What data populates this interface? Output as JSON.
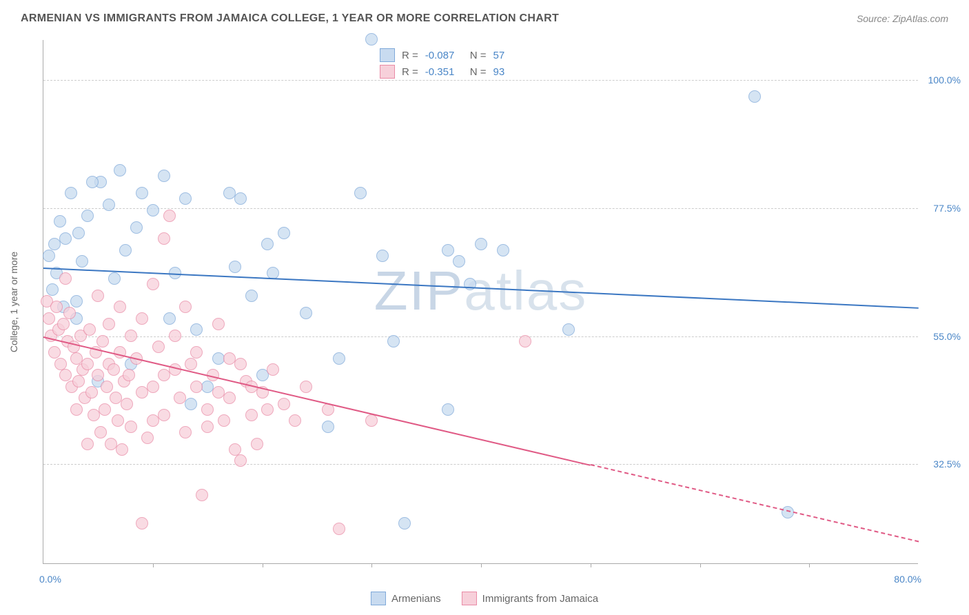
{
  "title": "ARMENIAN VS IMMIGRANTS FROM JAMAICA COLLEGE, 1 YEAR OR MORE CORRELATION CHART",
  "source": "Source: ZipAtlas.com",
  "ylabel": "College, 1 year or more",
  "watermark_a": "ZIP",
  "watermark_b": "atlas",
  "chart": {
    "type": "scatter",
    "xlim": [
      0,
      80
    ],
    "ylim": [
      15,
      107
    ],
    "yticks": [
      {
        "v": 32.5,
        "label": "32.5%"
      },
      {
        "v": 55.0,
        "label": "55.0%"
      },
      {
        "v": 77.5,
        "label": "77.5%"
      },
      {
        "v": 100.0,
        "label": "100.0%"
      }
    ],
    "xtick_marks": [
      10,
      20,
      30,
      40,
      50,
      60,
      70
    ],
    "xaxis_min_label": "0.0%",
    "xaxis_max_label": "80.0%",
    "grid_color": "#cccccc",
    "background_color": "#ffffff",
    "point_radius": 9,
    "series": [
      {
        "name": "Armenians",
        "fill": "#c8dbf0",
        "stroke": "#7fa9d9",
        "line_color": "#3b77c2",
        "R": "-0.087",
        "N": "57",
        "trend": {
          "x1": 0,
          "y1": 67,
          "x2": 80,
          "y2": 60,
          "dash_from_x": 80
        },
        "points": [
          [
            0.5,
            69
          ],
          [
            0.8,
            63
          ],
          [
            1,
            71
          ],
          [
            1.2,
            66
          ],
          [
            1.5,
            75
          ],
          [
            1.8,
            60
          ],
          [
            2,
            72
          ],
          [
            2.5,
            80
          ],
          [
            3,
            58
          ],
          [
            3.2,
            73
          ],
          [
            3.5,
            68
          ],
          [
            4,
            76
          ],
          [
            5,
            47
          ],
          [
            5.2,
            82
          ],
          [
            6,
            78
          ],
          [
            7,
            84
          ],
          [
            7.5,
            70
          ],
          [
            8,
            50
          ],
          [
            9,
            80
          ],
          [
            10,
            77
          ],
          [
            11,
            83
          ],
          [
            12,
            66
          ],
          [
            13,
            79
          ],
          [
            14,
            56
          ],
          [
            15,
            46
          ],
          [
            16,
            51
          ],
          [
            17,
            80
          ],
          [
            17.5,
            67
          ],
          [
            18,
            79
          ],
          [
            19,
            62
          ],
          [
            20,
            48
          ],
          [
            20.5,
            71
          ],
          [
            21,
            66
          ],
          [
            26,
            39
          ],
          [
            27,
            51
          ],
          [
            29,
            80
          ],
          [
            30,
            107
          ],
          [
            31,
            69
          ],
          [
            32,
            54
          ],
          [
            33,
            22
          ],
          [
            37,
            70
          ],
          [
            37,
            42
          ],
          [
            38,
            68
          ],
          [
            39,
            64
          ],
          [
            40,
            71
          ],
          [
            42,
            70
          ],
          [
            48,
            56
          ],
          [
            65,
            97
          ],
          [
            68,
            24
          ],
          [
            3,
            61
          ],
          [
            4.5,
            82
          ],
          [
            6.5,
            65
          ],
          [
            8.5,
            74
          ],
          [
            11.5,
            58
          ],
          [
            13.5,
            43
          ],
          [
            22,
            73
          ],
          [
            24,
            59
          ]
        ]
      },
      {
        "name": "Immigrants from Jamaica",
        "fill": "#f7d0da",
        "stroke": "#e98ba6",
        "line_color": "#e05a85",
        "R": "-0.351",
        "N": "93",
        "trend": {
          "x1": 0,
          "y1": 55,
          "x2": 80,
          "y2": 19,
          "dash_from_x": 50
        },
        "points": [
          [
            0.3,
            61
          ],
          [
            0.5,
            58
          ],
          [
            0.7,
            55
          ],
          [
            1,
            52
          ],
          [
            1.2,
            60
          ],
          [
            1.4,
            56
          ],
          [
            1.6,
            50
          ],
          [
            1.8,
            57
          ],
          [
            2,
            48
          ],
          [
            2.2,
            54
          ],
          [
            2.4,
            59
          ],
          [
            2.6,
            46
          ],
          [
            2.8,
            53
          ],
          [
            3,
            51
          ],
          [
            3.2,
            47
          ],
          [
            3.4,
            55
          ],
          [
            3.6,
            49
          ],
          [
            3.8,
            44
          ],
          [
            4,
            50
          ],
          [
            4.2,
            56
          ],
          [
            4.4,
            45
          ],
          [
            4.6,
            41
          ],
          [
            4.8,
            52
          ],
          [
            5,
            48
          ],
          [
            5.2,
            38
          ],
          [
            5.4,
            54
          ],
          [
            5.6,
            42
          ],
          [
            5.8,
            46
          ],
          [
            6,
            50
          ],
          [
            6.2,
            36
          ],
          [
            6.4,
            49
          ],
          [
            6.6,
            44
          ],
          [
            6.8,
            40
          ],
          [
            7,
            52
          ],
          [
            7.2,
            35
          ],
          [
            7.4,
            47
          ],
          [
            7.6,
            43
          ],
          [
            7.8,
            48
          ],
          [
            8,
            39
          ],
          [
            8.5,
            51
          ],
          [
            9,
            45
          ],
          [
            9.5,
            37
          ],
          [
            10,
            46
          ],
          [
            10.5,
            53
          ],
          [
            11,
            41
          ],
          [
            11.5,
            76
          ],
          [
            12,
            49
          ],
          [
            12.5,
            44
          ],
          [
            13,
            38
          ],
          [
            13.5,
            50
          ],
          [
            14,
            46
          ],
          [
            14.5,
            27
          ],
          [
            15,
            42
          ],
          [
            15.5,
            48
          ],
          [
            16,
            57
          ],
          [
            16.5,
            40
          ],
          [
            17,
            44
          ],
          [
            17.5,
            35
          ],
          [
            18,
            50
          ],
          [
            18.5,
            47
          ],
          [
            19,
            41
          ],
          [
            19.5,
            36
          ],
          [
            20,
            45
          ],
          [
            20.5,
            42
          ],
          [
            21,
            49
          ],
          [
            22,
            43
          ],
          [
            23,
            40
          ],
          [
            24,
            46
          ],
          [
            9,
            22
          ],
          [
            10,
            64
          ],
          [
            11,
            72
          ],
          [
            26,
            42
          ],
          [
            27,
            21
          ],
          [
            30,
            40
          ],
          [
            44,
            54
          ],
          [
            2,
            65
          ],
          [
            3,
            42
          ],
          [
            4,
            36
          ],
          [
            5,
            62
          ],
          [
            6,
            57
          ],
          [
            7,
            60
          ],
          [
            8,
            55
          ],
          [
            9,
            58
          ],
          [
            10,
            40
          ],
          [
            11,
            48
          ],
          [
            12,
            55
          ],
          [
            13,
            60
          ],
          [
            14,
            52
          ],
          [
            15,
            39
          ],
          [
            16,
            45
          ],
          [
            17,
            51
          ],
          [
            18,
            33
          ],
          [
            19,
            46
          ]
        ]
      }
    ]
  },
  "stats_legend": {
    "r_label": "R =",
    "n_label": "N ="
  }
}
